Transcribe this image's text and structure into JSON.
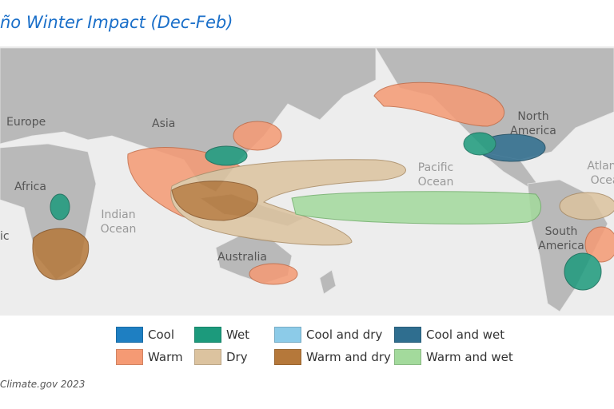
{
  "title": "ño Winter Impact (Dec-Feb)",
  "map_labels": [
    "Europe",
    "Asia",
    "Africa",
    "Indian Ocean",
    "Australia",
    "Pacific Ocean",
    "North America",
    "South America",
    "Atlantic Ocean",
    "ic"
  ],
  "legend": [
    {
      "name": "Cool",
      "color": "#1e7fc2"
    },
    {
      "name": "Wet",
      "color": "#1c9a7c"
    },
    {
      "name": "Cool and dry",
      "color": "#8ccbe8"
    },
    {
      "name": "Cool and wet",
      "color": "#2f6e8f"
    },
    {
      "name": "Warm",
      "color": "#f59a74"
    },
    {
      "name": "Dry",
      "color": "#dcc39f"
    },
    {
      "name": "Warm and dry",
      "color": "#b5783a"
    },
    {
      "name": "Warm and wet",
      "color": "#a3da9c"
    }
  ],
  "source": "Climate.gov 2023"
}
